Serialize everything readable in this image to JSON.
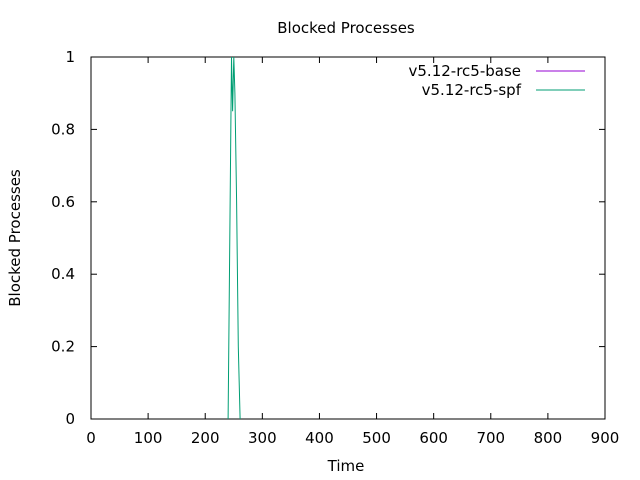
{
  "chart_data": {
    "type": "line",
    "title": "Blocked Processes",
    "xlabel": "Time",
    "ylabel": "Blocked Processes",
    "xlim": [
      0,
      900
    ],
    "ylim": [
      0,
      1
    ],
    "xticks": [
      0,
      100,
      200,
      300,
      400,
      500,
      600,
      700,
      800,
      900
    ],
    "xtick_labels": [
      "0",
      "100",
      "200",
      "300",
      "400",
      "500",
      "600",
      "700",
      "800",
      "900"
    ],
    "yticks": [
      0,
      0.2,
      0.4,
      0.6,
      0.8,
      1
    ],
    "ytick_labels": [
      "0",
      "0.2",
      "0.4",
      "0.6",
      "0.8",
      "1"
    ],
    "grid": false,
    "legend_position": "top-right",
    "series": [
      {
        "name": "v5.12-rc5-base",
        "color": "#9400d3",
        "x": [],
        "y": []
      },
      {
        "name": "v5.12-rc5-spf",
        "color": "#009e73",
        "x": [
          240,
          243,
          246,
          248,
          250,
          252,
          255,
          258,
          261
        ],
        "y": [
          0,
          0.5,
          1,
          0.85,
          1,
          0.9,
          0.6,
          0.2,
          0
        ]
      }
    ]
  }
}
